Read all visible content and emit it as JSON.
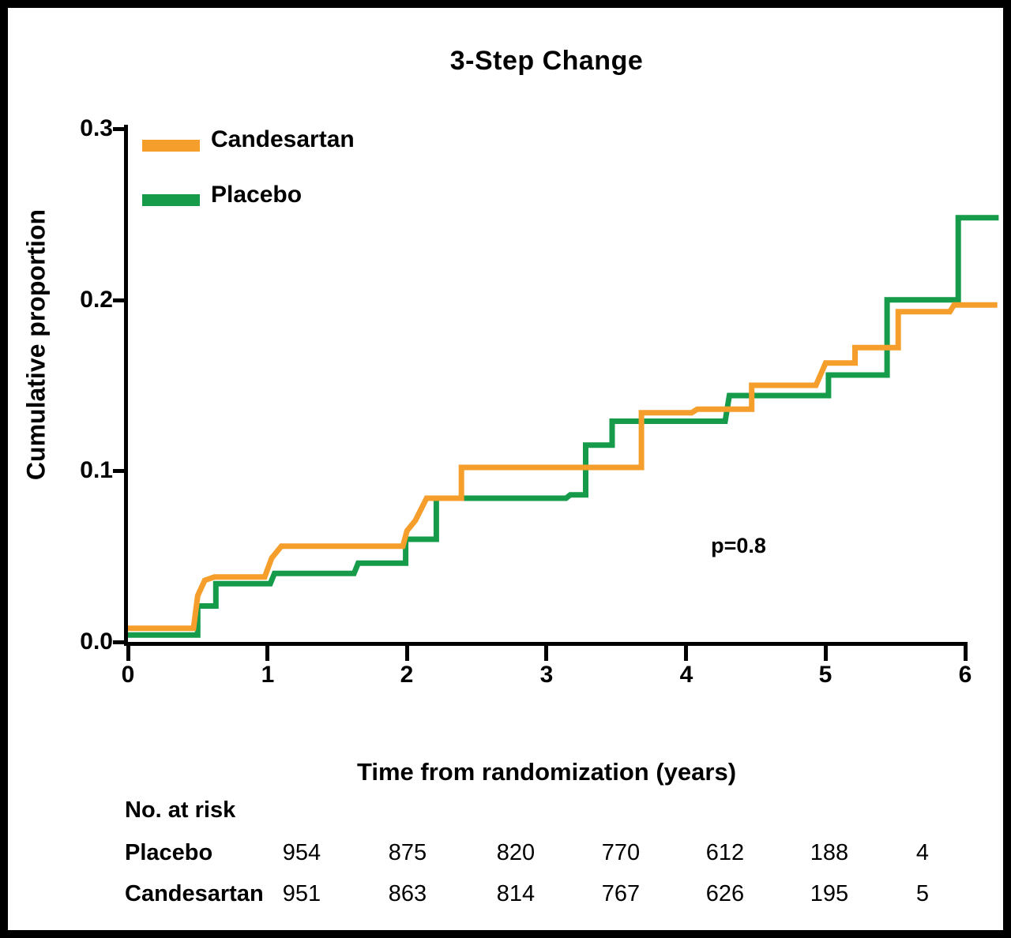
{
  "chart_data": {
    "type": "line",
    "subtype": "kaplan-meier-cumulative-incidence-step",
    "title": "3-Step Change",
    "xlabel": "Time from randomization (years)",
    "ylabel": "Cumulative proportion",
    "xlim": [
      0,
      6.3
    ],
    "ylim": [
      0,
      0.3
    ],
    "x_tick_labels": [
      "0",
      "1",
      "2",
      "3",
      "4",
      "5",
      "6"
    ],
    "y_tick_labels": [
      "0.0",
      "0.1",
      "0.2",
      "0.3"
    ],
    "grid": false,
    "legend_position": "inside-top-left",
    "annotation": "p=0.8",
    "series": [
      {
        "name": "Candesartan",
        "color": "#F59E2B",
        "points": [
          [
            0,
            0.008
          ],
          [
            0.47,
            0.008
          ],
          [
            0.5,
            0.027
          ],
          [
            0.55,
            0.036
          ],
          [
            0.62,
            0.038
          ],
          [
            0.98,
            0.038
          ],
          [
            1.03,
            0.049
          ],
          [
            1.1,
            0.056
          ],
          [
            1.97,
            0.056
          ],
          [
            2.0,
            0.065
          ],
          [
            2.06,
            0.071
          ],
          [
            2.14,
            0.084
          ],
          [
            2.39,
            0.084
          ],
          [
            2.39,
            0.102
          ],
          [
            3.68,
            0.102
          ],
          [
            3.68,
            0.134
          ],
          [
            4.04,
            0.134
          ],
          [
            4.08,
            0.136
          ],
          [
            4.47,
            0.136
          ],
          [
            4.47,
            0.15
          ],
          [
            4.93,
            0.15
          ],
          [
            5.0,
            0.163
          ],
          [
            5.21,
            0.163
          ],
          [
            5.21,
            0.172
          ],
          [
            5.52,
            0.172
          ],
          [
            5.52,
            0.193
          ],
          [
            5.89,
            0.193
          ],
          [
            5.92,
            0.197
          ],
          [
            6.23,
            0.197
          ]
        ]
      },
      {
        "name": "Placebo",
        "color": "#169B4B",
        "points": [
          [
            0,
            0.004
          ],
          [
            0.5,
            0.004
          ],
          [
            0.5,
            0.021
          ],
          [
            0.63,
            0.021
          ],
          [
            0.63,
            0.034
          ],
          [
            1.02,
            0.034
          ],
          [
            1.05,
            0.04
          ],
          [
            1.62,
            0.04
          ],
          [
            1.65,
            0.046
          ],
          [
            1.99,
            0.046
          ],
          [
            1.99,
            0.06
          ],
          [
            2.21,
            0.06
          ],
          [
            2.21,
            0.084
          ],
          [
            3.14,
            0.084
          ],
          [
            3.17,
            0.086
          ],
          [
            3.28,
            0.086
          ],
          [
            3.28,
            0.115
          ],
          [
            3.47,
            0.115
          ],
          [
            3.47,
            0.129
          ],
          [
            4.28,
            0.129
          ],
          [
            4.31,
            0.144
          ],
          [
            5.02,
            0.144
          ],
          [
            5.02,
            0.156
          ],
          [
            5.44,
            0.156
          ],
          [
            5.44,
            0.2
          ],
          [
            5.95,
            0.2
          ],
          [
            5.95,
            0.248
          ],
          [
            6.24,
            0.248
          ]
        ]
      }
    ],
    "risk_table": {
      "heading": "No. at risk",
      "time_points": [
        0,
        1,
        2,
        3,
        4,
        5,
        6
      ],
      "rows": [
        {
          "label": "Placebo",
          "values": [
            "954",
            "875",
            "820",
            "770",
            "612",
            "188",
            "4"
          ]
        },
        {
          "label": "Candesartan",
          "values": [
            "951",
            "863",
            "814",
            "767",
            "626",
            "195",
            "5"
          ]
        }
      ]
    }
  }
}
